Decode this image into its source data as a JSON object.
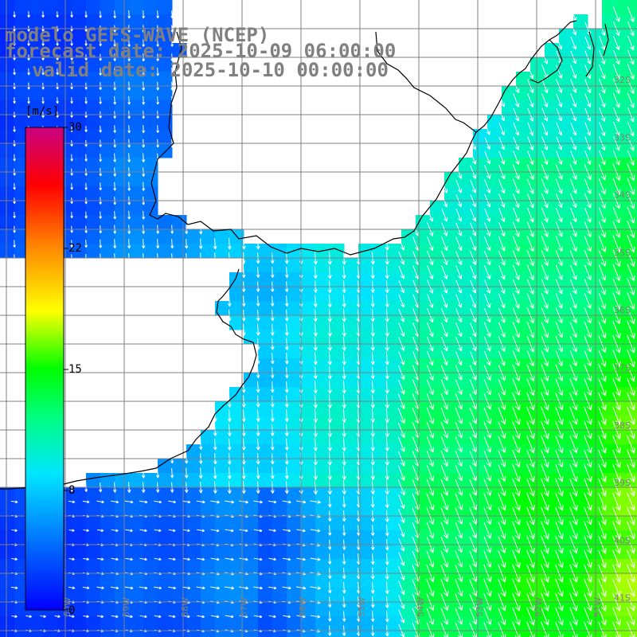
{
  "title": {
    "model": "modelo GEFS-WAVE (NCEP)",
    "forecast_date": "forecast date: 2025-10-09 06:00:00",
    "valid_date": "valid date: 2025-10-10 00:00:00"
  },
  "colorbar": {
    "unit": "[m/s]",
    "range": [
      0,
      30
    ],
    "ticks": [
      {
        "value": 30,
        "label": "30"
      },
      {
        "value": 22,
        "label": "22"
      },
      {
        "value": 15,
        "label": "15"
      },
      {
        "value": 8,
        "label": "8"
      },
      {
        "value": 0,
        "label": "0"
      }
    ],
    "colors": [
      "#0000ff",
      "#0080ff",
      "#00e5ff",
      "#00ff40",
      "#60ff00",
      "#ffff00",
      "#ff8000",
      "#ff0000",
      "#c80080"
    ]
  },
  "lat_labels": [
    "32S",
    "33S",
    "34S",
    "35S",
    "36S",
    "37S",
    "38S",
    "39S",
    "40S",
    "41S"
  ],
  "lon_labels": [
    "60W",
    "59W",
    "58W",
    "57W",
    "56W",
    "55W",
    "54W",
    "53W",
    "52W",
    "51W"
  ],
  "colors": {
    "grid": "#808080",
    "coast": "#000000",
    "arrow": "#ffffff",
    "title": "#808080"
  }
}
